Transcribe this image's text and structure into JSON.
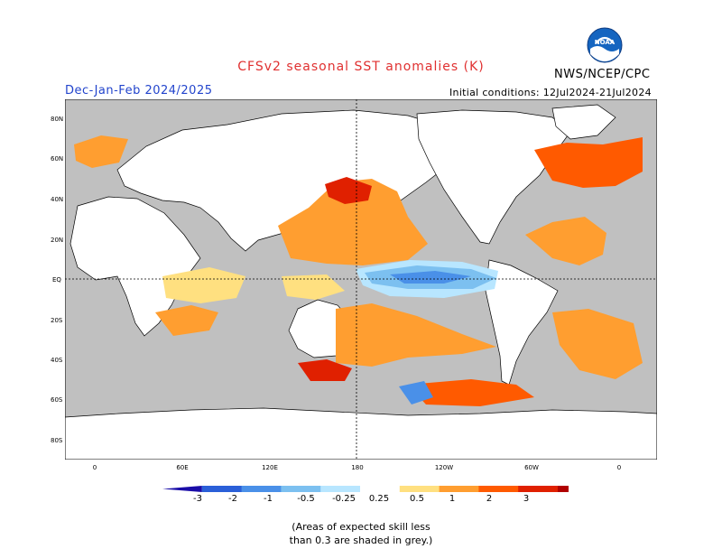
{
  "header": {
    "title": "CFSv2 seasonal SST anomalies (K)",
    "period": "Dec-Jan-Feb 2024/2025",
    "credit": "NWS/NCEP/CPC",
    "initial_conditions": "Initial conditions: 12Jul2024-21Jul2024",
    "logo_text": "NOAA"
  },
  "axes": {
    "lat_labels": [
      "80N",
      "60N",
      "40N",
      "20N",
      "EQ",
      "20S",
      "40S",
      "60S",
      "80S"
    ],
    "lon_labels": [
      "0",
      "60E",
      "120E",
      "180",
      "120W",
      "60W",
      "0"
    ]
  },
  "colorbar": {
    "labels": [
      "-3",
      "-2",
      "-1",
      "-0.5",
      "-0.25",
      "0.25",
      "0.5",
      "1",
      "2",
      "3"
    ],
    "colors": [
      "#1a0da8",
      "#2a5fd8",
      "#4a90e8",
      "#7cc0f0",
      "#b8e6ff",
      "#ffffff",
      "#ffe080",
      "#ff9e30",
      "#ff5a00",
      "#e02000",
      "#b00000",
      "#7a3a2a"
    ]
  },
  "legend_note": {
    "line1": "(Areas of expected skill less",
    "line2": "than 0.3 are shaded in grey.)"
  },
  "colors": {
    "grey": "#c0c0c0",
    "land": "#ffffff",
    "title": "#e03030",
    "period": "#2244cc"
  }
}
